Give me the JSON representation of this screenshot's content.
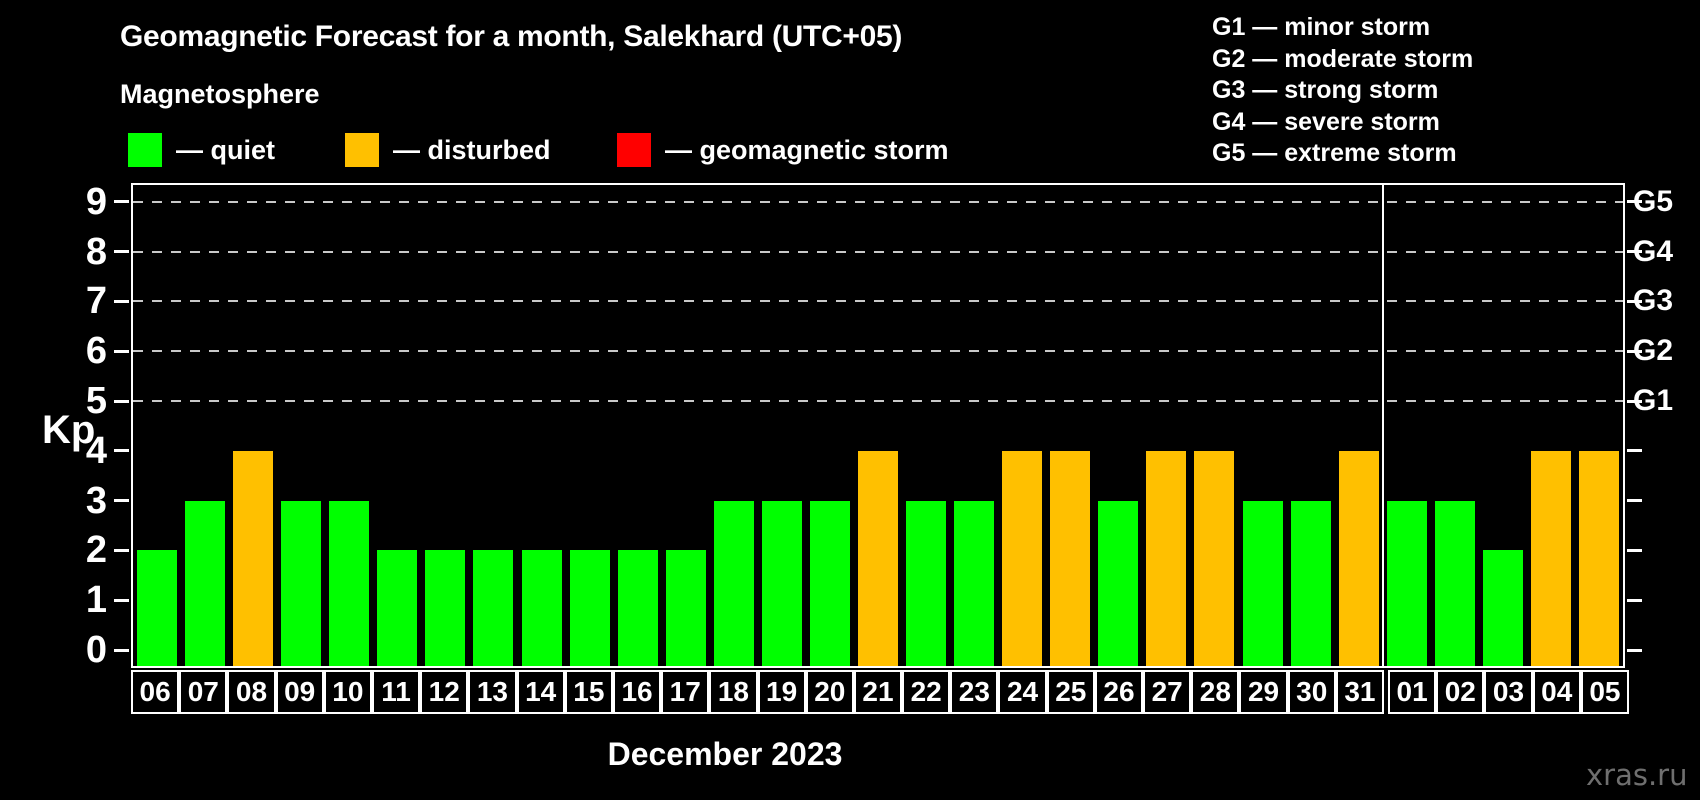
{
  "header": {
    "title": "Geomagnetic Forecast for a month, Salekhard (UTC+05)",
    "subtitle": "Magnetosphere"
  },
  "legend": [
    {
      "name": "quiet",
      "label": "— quiet",
      "color": "#00ff00"
    },
    {
      "name": "disturbed",
      "label": "— disturbed",
      "color": "#ffc000"
    },
    {
      "name": "storm",
      "label": "— geomagnetic storm",
      "color": "#ff0000"
    }
  ],
  "storm_scale_legend": [
    "G1 — minor storm",
    "G2 — moderate storm",
    "G3 — strong storm",
    "G4 — severe storm",
    "G5 — extreme storm"
  ],
  "chart_data": {
    "type": "bar",
    "title": "Geomagnetic Forecast for a month, Salekhard (UTC+05)",
    "ylabel": "Kp",
    "xlabel": "December 2023",
    "ylim": [
      0,
      9
    ],
    "yticks": [
      0,
      1,
      2,
      3,
      4,
      5,
      6,
      7,
      8,
      9
    ],
    "dashed_gridlines_at": [
      5,
      6,
      7,
      8,
      9
    ],
    "right_axis_labels": [
      {
        "label": "G1",
        "kp": 5
      },
      {
        "label": "G2",
        "kp": 6
      },
      {
        "label": "G3",
        "kp": 7
      },
      {
        "label": "G4",
        "kp": 8
      },
      {
        "label": "G5",
        "kp": 9
      }
    ],
    "categories": [
      "06",
      "07",
      "08",
      "09",
      "10",
      "11",
      "12",
      "13",
      "14",
      "15",
      "16",
      "17",
      "18",
      "19",
      "20",
      "21",
      "22",
      "23",
      "24",
      "25",
      "26",
      "27",
      "28",
      "29",
      "30",
      "31",
      "01",
      "02",
      "03",
      "04",
      "05"
    ],
    "values": [
      2,
      3,
      4,
      3,
      3,
      2,
      2,
      2,
      2,
      2,
      2,
      2,
      3,
      3,
      3,
      4,
      3,
      3,
      4,
      4,
      3,
      4,
      4,
      3,
      3,
      4,
      3,
      3,
      2,
      4,
      4
    ],
    "states": [
      "quiet",
      "quiet",
      "disturbed",
      "quiet",
      "quiet",
      "quiet",
      "quiet",
      "quiet",
      "quiet",
      "quiet",
      "quiet",
      "quiet",
      "quiet",
      "quiet",
      "quiet",
      "disturbed",
      "quiet",
      "quiet",
      "disturbed",
      "disturbed",
      "quiet",
      "disturbed",
      "disturbed",
      "quiet",
      "quiet",
      "disturbed",
      "quiet",
      "quiet",
      "quiet",
      "disturbed",
      "disturbed"
    ],
    "state_colors": {
      "quiet": "#00ff00",
      "disturbed": "#ffc000",
      "storm": "#ff0000"
    },
    "month_separator_after_index": 25,
    "legend_position": "top-left",
    "grid": "dashed horizontal lines at Kp 5-9 only"
  },
  "footer": {
    "month_label": "December 2023",
    "watermark": "xras.ru"
  }
}
